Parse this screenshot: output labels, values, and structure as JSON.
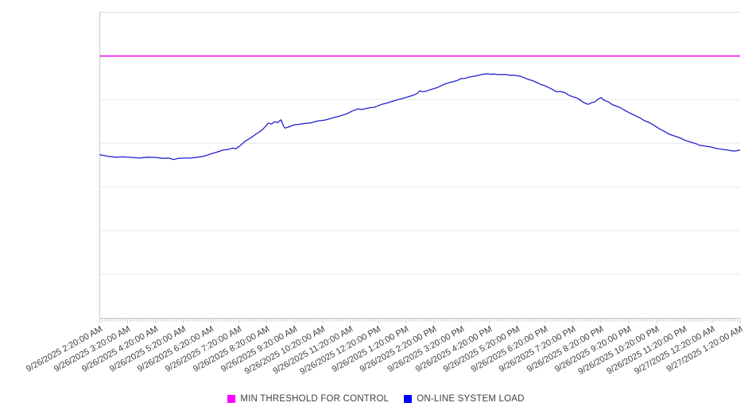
{
  "chart_data": {
    "type": "line",
    "title": "",
    "xlabel": "",
    "ylabel": "",
    "legend_position": "bottom-center",
    "grid": "horizontal",
    "colors": {
      "background": "#ffffff",
      "gridline": "#e8e8e8",
      "top_gridline": "#dcdcdc",
      "axis": "#c9c9c9",
      "tick": "#c9c9c9",
      "tick_label": "#3f3f3f",
      "threshold_line": "#ee00ee",
      "threshold_swatch": "#ff00ff",
      "load_line": "#2121cd",
      "load_swatch": "#0000ff"
    },
    "x_axis": {
      "range_hours": [
        0,
        23
      ],
      "minor_tick_interval_minutes": 5,
      "major_tick_interval_minutes": 60,
      "label_rotation_deg": -29,
      "labels": [
        "9/26/2025 2:20:00 AM",
        "9/26/2025 3:20:00 AM",
        "9/26/2025 4:20:00 AM",
        "9/26/2025 5:20:00 AM",
        "9/26/2025 6:20:00 AM",
        "9/26/2025 7:20:00 AM",
        "9/26/2025 8:20:00 AM",
        "9/26/2025 9:20:00 AM",
        "9/26/2025 10:20:00 AM",
        "9/26/2025 11:20:00 AM",
        "9/26/2025 12:20:00 PM",
        "9/26/2025 1:20:00 PM",
        "9/26/2025 2:20:00 PM",
        "9/26/2025 3:20:00 PM",
        "9/26/2025 4:20:00 PM",
        "9/26/2025 5:20:00 PM",
        "9/26/2025 6:20:00 PM",
        "9/26/2025 7:20:00 PM",
        "9/26/2025 8:20:00 PM",
        "9/26/2025 9:20:00 PM",
        "9/26/2025 10:20:00 PM",
        "9/26/2025 11:20:00 PM",
        "9/27/2025 12:20:00 AM",
        "9/27/2025 1:20:00 AM"
      ]
    },
    "y_axis": {
      "labels_visible": false,
      "unit": "percent of plot height (no numeric scale shown in chart)",
      "range_pct": [
        0,
        100
      ],
      "gridline_divisions": 7
    },
    "series": [
      {
        "name": "MIN THRESHOLD FOR CONTROL",
        "type": "constant",
        "value_pct": 85.7
      },
      {
        "name": "ON-LINE SYSTEM LOAD",
        "type": "points",
        "points": [
          [
            0,
            53.4
          ],
          [
            0.29,
            52.9
          ],
          [
            0.57,
            52.6
          ],
          [
            0.86,
            52.7
          ],
          [
            1.14,
            52.5
          ],
          [
            1.43,
            52.3
          ],
          [
            1.71,
            52.6
          ],
          [
            2.0,
            52.5
          ],
          [
            2.28,
            52.2
          ],
          [
            2.48,
            52.3
          ],
          [
            2.65,
            51.8
          ],
          [
            2.83,
            52.2
          ],
          [
            3.05,
            52.3
          ],
          [
            3.28,
            52.3
          ],
          [
            3.51,
            52.6
          ],
          [
            3.74,
            52.9
          ],
          [
            3.97,
            53.6
          ],
          [
            4.19,
            54.2
          ],
          [
            4.42,
            54.9
          ],
          [
            4.65,
            55.2
          ],
          [
            4.77,
            55.6
          ],
          [
            4.88,
            55.3
          ],
          [
            4.99,
            56.0
          ],
          [
            5.22,
            57.8
          ],
          [
            5.45,
            59.1
          ],
          [
            5.62,
            60.2
          ],
          [
            5.71,
            60.7
          ],
          [
            5.85,
            61.7
          ],
          [
            5.99,
            63.0
          ],
          [
            6.05,
            63.8
          ],
          [
            6.16,
            63.4
          ],
          [
            6.28,
            64.2
          ],
          [
            6.39,
            63.9
          ],
          [
            6.51,
            64.8
          ],
          [
            6.59,
            63.0
          ],
          [
            6.65,
            62.1
          ],
          [
            6.76,
            62.4
          ],
          [
            6.88,
            62.8
          ],
          [
            6.99,
            63.2
          ],
          [
            7.13,
            63.3
          ],
          [
            7.28,
            63.5
          ],
          [
            7.42,
            63.7
          ],
          [
            7.56,
            63.8
          ],
          [
            7.7,
            64.1
          ],
          [
            7.85,
            64.5
          ],
          [
            7.99,
            64.6
          ],
          [
            8.13,
            64.8
          ],
          [
            8.28,
            65.2
          ],
          [
            8.42,
            65.6
          ],
          [
            8.56,
            65.9
          ],
          [
            8.7,
            66.3
          ],
          [
            8.85,
            66.7
          ],
          [
            8.99,
            67.3
          ],
          [
            9.07,
            67.7
          ],
          [
            9.19,
            68.1
          ],
          [
            9.28,
            68.4
          ],
          [
            9.42,
            68.2
          ],
          [
            9.56,
            68.5
          ],
          [
            9.7,
            68.8
          ],
          [
            9.85,
            68.9
          ],
          [
            9.99,
            69.4
          ],
          [
            10.13,
            69.9
          ],
          [
            10.27,
            70.2
          ],
          [
            10.42,
            70.6
          ],
          [
            10.56,
            71.0
          ],
          [
            10.7,
            71.4
          ],
          [
            10.84,
            71.7
          ],
          [
            10.99,
            72.1
          ],
          [
            11.13,
            72.5
          ],
          [
            11.27,
            72.9
          ],
          [
            11.39,
            73.4
          ],
          [
            11.5,
            74.3
          ],
          [
            11.62,
            74.0
          ],
          [
            11.73,
            74.2
          ],
          [
            11.84,
            74.6
          ],
          [
            11.99,
            75.0
          ],
          [
            12.13,
            75.4
          ],
          [
            12.27,
            76.0
          ],
          [
            12.41,
            76.6
          ],
          [
            12.56,
            77.0
          ],
          [
            12.7,
            77.3
          ],
          [
            12.84,
            77.7
          ],
          [
            12.99,
            78.3
          ],
          [
            13.13,
            78.4
          ],
          [
            13.27,
            78.8
          ],
          [
            13.41,
            79.0
          ],
          [
            13.56,
            79.3
          ],
          [
            13.7,
            79.6
          ],
          [
            13.84,
            79.8
          ],
          [
            13.93,
            79.9
          ],
          [
            14.04,
            79.7
          ],
          [
            14.16,
            79.8
          ],
          [
            14.27,
            79.7
          ],
          [
            14.41,
            79.6
          ],
          [
            14.5,
            79.7
          ],
          [
            14.61,
            79.6
          ],
          [
            14.73,
            79.4
          ],
          [
            14.84,
            79.4
          ],
          [
            14.98,
            79.3
          ],
          [
            15.13,
            79.0
          ],
          [
            15.27,
            78.5
          ],
          [
            15.41,
            78.0
          ],
          [
            15.56,
            77.6
          ],
          [
            15.7,
            77.0
          ],
          [
            15.84,
            76.4
          ],
          [
            15.98,
            76.0
          ],
          [
            16.12,
            75.4
          ],
          [
            16.27,
            74.7
          ],
          [
            16.41,
            74.0
          ],
          [
            16.55,
            74.1
          ],
          [
            16.7,
            73.7
          ],
          [
            16.84,
            72.9
          ],
          [
            16.98,
            72.4
          ],
          [
            17.13,
            72.0
          ],
          [
            17.21,
            71.6
          ],
          [
            17.33,
            70.8
          ],
          [
            17.44,
            70.2
          ],
          [
            17.55,
            69.9
          ],
          [
            17.67,
            70.4
          ],
          [
            17.78,
            70.7
          ],
          [
            17.9,
            71.6
          ],
          [
            18.01,
            72.1
          ],
          [
            18.12,
            71.2
          ],
          [
            18.27,
            70.7
          ],
          [
            18.41,
            69.8
          ],
          [
            18.55,
            69.3
          ],
          [
            18.7,
            68.8
          ],
          [
            18.84,
            68.0
          ],
          [
            18.98,
            67.3
          ],
          [
            19.12,
            66.7
          ],
          [
            19.27,
            66.0
          ],
          [
            19.41,
            65.4
          ],
          [
            19.55,
            64.6
          ],
          [
            19.69,
            64.1
          ],
          [
            19.84,
            63.4
          ],
          [
            19.98,
            62.6
          ],
          [
            20.12,
            61.8
          ],
          [
            20.27,
            61.1
          ],
          [
            20.41,
            60.3
          ],
          [
            20.55,
            59.8
          ],
          [
            20.69,
            59.4
          ],
          [
            20.84,
            58.9
          ],
          [
            20.98,
            58.3
          ],
          [
            21.12,
            57.8
          ],
          [
            21.27,
            57.4
          ],
          [
            21.41,
            57.0
          ],
          [
            21.55,
            56.5
          ],
          [
            21.69,
            56.3
          ],
          [
            21.84,
            56.1
          ],
          [
            21.98,
            55.9
          ],
          [
            22.12,
            55.5
          ],
          [
            22.26,
            55.3
          ],
          [
            22.41,
            55.1
          ],
          [
            22.55,
            54.9
          ],
          [
            22.69,
            54.7
          ],
          [
            22.84,
            54.6
          ],
          [
            22.92,
            54.8
          ],
          [
            23.0,
            54.9
          ]
        ]
      }
    ]
  }
}
